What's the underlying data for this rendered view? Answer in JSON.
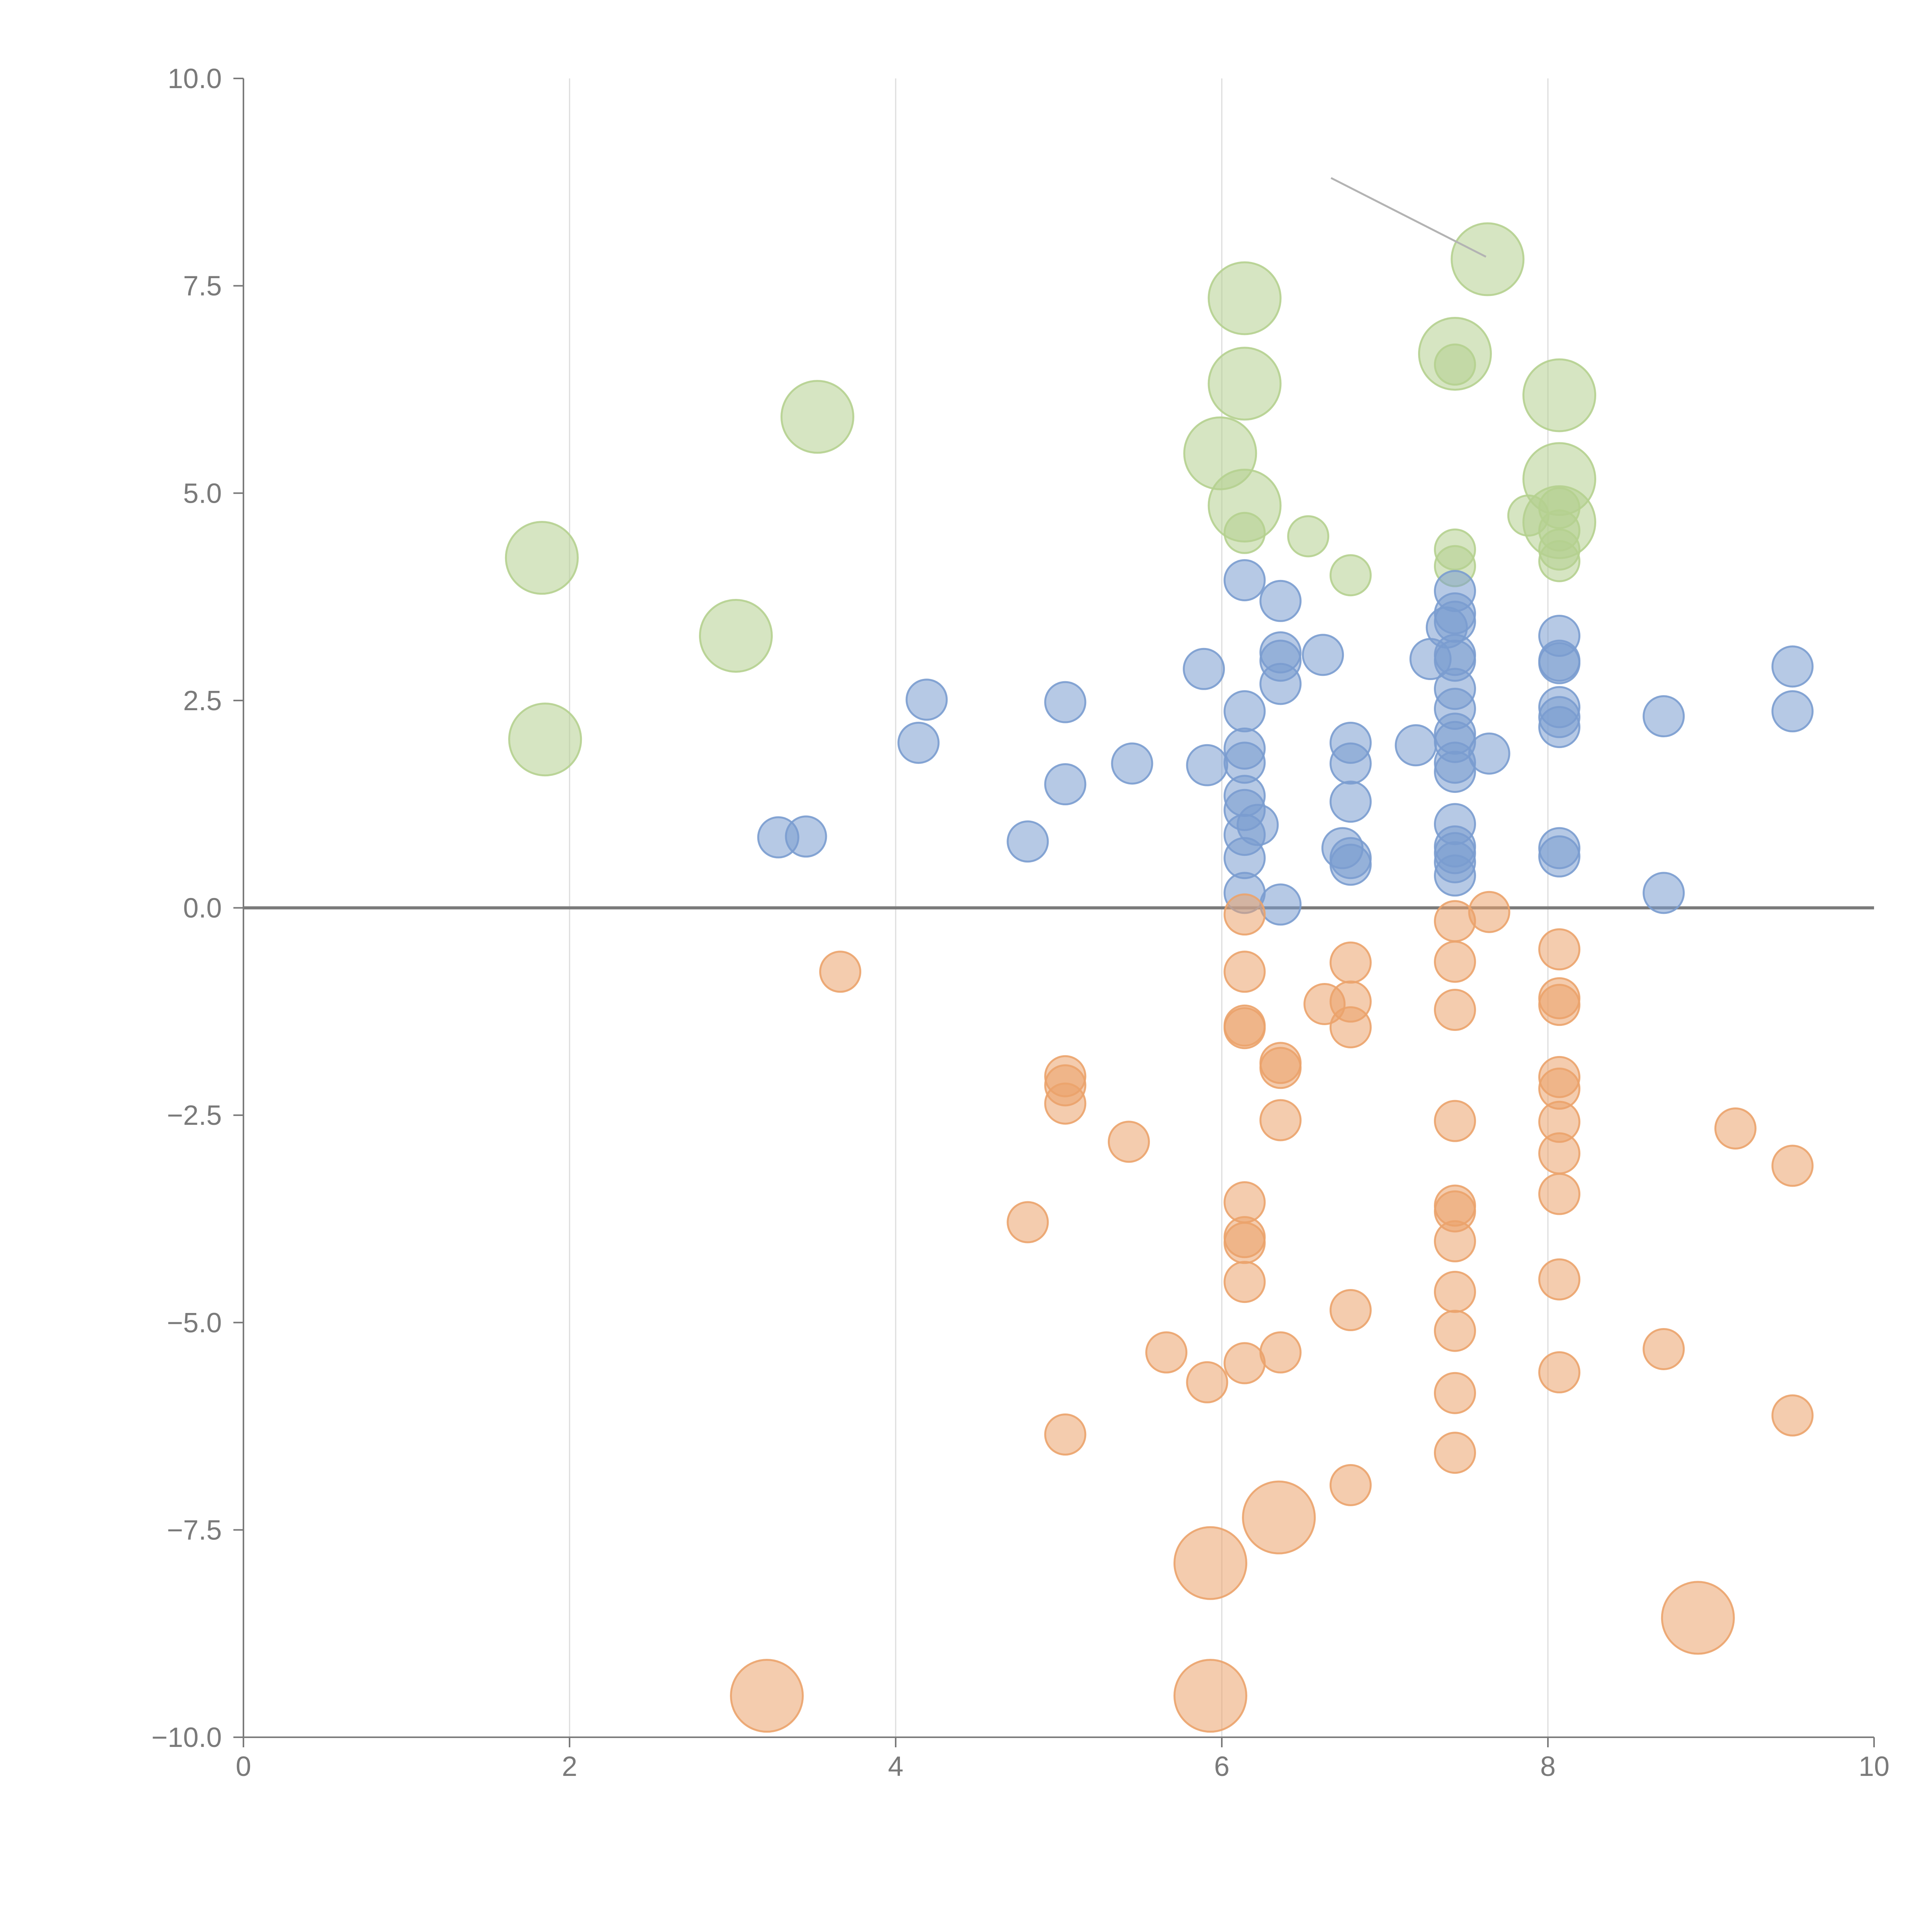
{
  "chart_data": {
    "type": "scatter",
    "title": "",
    "xlabel": "",
    "ylabel": "",
    "xlim": [
      0,
      10
    ],
    "ylim": [
      -10,
      10
    ],
    "x_ticks": [
      "0",
      "2",
      "4",
      "6",
      "8",
      "10"
    ],
    "y_ticks": [
      "10.0",
      "7.5",
      "5.0",
      "2.5",
      "0.0",
      "−2.5",
      "−5.0",
      "−7.5",
      "−10.0"
    ],
    "grid": "vertical",
    "legend": "none",
    "zero_line": true,
    "colors": {
      "green": "#b5d08f",
      "blue": "#7a9ccf",
      "orange": "#eba36b",
      "axis": "#7a7a7a",
      "grid": "#dcdcdc",
      "leader": "#b3b3b3"
    },
    "annotation_leader": {
      "from": [
        6.67,
        8.8
      ],
      "to": [
        7.62,
        7.85
      ]
    },
    "series": [
      {
        "color_key": "green",
        "points": [
          [
            1.83,
            4.22,
            3
          ],
          [
            1.85,
            2.03,
            3
          ],
          [
            3.02,
            3.28,
            3
          ],
          [
            3.52,
            5.92,
            3
          ],
          [
            5.99,
            5.48,
            3
          ],
          [
            6.14,
            7.35,
            3
          ],
          [
            6.14,
            6.32,
            3
          ],
          [
            6.14,
            4.85,
            3
          ],
          [
            7.43,
            6.68,
            3
          ],
          [
            7.63,
            7.82,
            3
          ],
          [
            8.07,
            6.18,
            3
          ],
          [
            8.07,
            5.17,
            3
          ],
          [
            8.07,
            4.65,
            3
          ],
          [
            6.14,
            4.52,
            1
          ],
          [
            6.53,
            4.48,
            1
          ],
          [
            6.79,
            4.01,
            1
          ],
          [
            7.43,
            6.55,
            1
          ],
          [
            7.43,
            4.32,
            1
          ],
          [
            7.43,
            4.12,
            1
          ],
          [
            7.88,
            4.73,
            1
          ],
          [
            8.07,
            4.82,
            1
          ],
          [
            8.07,
            4.55,
            1
          ],
          [
            8.07,
            4.32,
            1
          ],
          [
            8.07,
            4.18,
            1
          ]
        ]
      },
      {
        "color_key": "blue",
        "points": [
          [
            3.28,
            0.85,
            1
          ],
          [
            3.45,
            0.86,
            1
          ],
          [
            4.14,
            1.99,
            1
          ],
          [
            4.19,
            2.51,
            1
          ],
          [
            4.81,
            0.8,
            1
          ],
          [
            5.04,
            2.48,
            1
          ],
          [
            5.04,
            1.49,
            1
          ],
          [
            5.45,
            1.74,
            1
          ],
          [
            5.89,
            2.88,
            1
          ],
          [
            5.91,
            1.72,
            1
          ],
          [
            6.14,
            3.95,
            1
          ],
          [
            6.14,
            2.37,
            1
          ],
          [
            6.14,
            1.92,
            1
          ],
          [
            6.14,
            1.75,
            1
          ],
          [
            6.14,
            1.35,
            1
          ],
          [
            6.14,
            1.18,
            1
          ],
          [
            6.14,
            0.88,
            1
          ],
          [
            6.14,
            0.6,
            1
          ],
          [
            6.14,
            0.18,
            1
          ],
          [
            6.22,
            1.0,
            1
          ],
          [
            6.36,
            3.7,
            1
          ],
          [
            6.36,
            3.08,
            1
          ],
          [
            6.36,
            2.98,
            1
          ],
          [
            6.36,
            2.7,
            1
          ],
          [
            6.36,
            0.04,
            1
          ],
          [
            6.62,
            3.05,
            1
          ],
          [
            6.74,
            0.72,
            1
          ],
          [
            6.79,
            1.99,
            1
          ],
          [
            6.79,
            1.74,
            1
          ],
          [
            6.79,
            1.28,
            1
          ],
          [
            6.79,
            0.6,
            1
          ],
          [
            6.79,
            0.52,
            1
          ],
          [
            7.19,
            1.96,
            1
          ],
          [
            7.28,
            3.0,
            1
          ],
          [
            7.38,
            3.38,
            1
          ],
          [
            7.43,
            3.82,
            1
          ],
          [
            7.43,
            3.55,
            1
          ],
          [
            7.43,
            3.45,
            1
          ],
          [
            7.43,
            3.05,
            1
          ],
          [
            7.43,
            2.98,
            1
          ],
          [
            7.43,
            2.64,
            1
          ],
          [
            7.43,
            2.4,
            1
          ],
          [
            7.43,
            2.1,
            1
          ],
          [
            7.43,
            2.0,
            1
          ],
          [
            7.43,
            1.75,
            1
          ],
          [
            7.43,
            1.64,
            1
          ],
          [
            7.43,
            1.01,
            1
          ],
          [
            7.43,
            0.74,
            1
          ],
          [
            7.43,
            0.66,
            1
          ],
          [
            7.43,
            0.55,
            1
          ],
          [
            7.43,
            0.39,
            1
          ],
          [
            7.64,
            1.86,
            1
          ],
          [
            8.07,
            3.28,
            1
          ],
          [
            8.07,
            2.98,
            1
          ],
          [
            8.07,
            2.95,
            1
          ],
          [
            8.07,
            2.42,
            1
          ],
          [
            8.07,
            2.3,
            1
          ],
          [
            8.07,
            2.18,
            1
          ],
          [
            8.07,
            0.72,
            1
          ],
          [
            8.07,
            0.62,
            1
          ],
          [
            8.71,
            2.31,
            1
          ],
          [
            8.71,
            0.18,
            1
          ],
          [
            9.5,
            2.91,
            1
          ],
          [
            9.5,
            2.37,
            1
          ]
        ]
      },
      {
        "color_key": "orange",
        "points": [
          [
            3.66,
            -0.77,
            1
          ],
          [
            4.81,
            -3.79,
            1
          ],
          [
            5.04,
            -2.03,
            1
          ],
          [
            5.04,
            -2.14,
            1
          ],
          [
            5.04,
            -2.36,
            1
          ],
          [
            5.04,
            -6.35,
            1
          ],
          [
            5.43,
            -2.82,
            1
          ],
          [
            5.66,
            -5.36,
            1
          ],
          [
            5.91,
            -5.72,
            1
          ],
          [
            6.14,
            -0.08,
            1
          ],
          [
            6.14,
            -0.77,
            1
          ],
          [
            6.14,
            -1.45,
            1
          ],
          [
            6.14,
            -1.42,
            1
          ],
          [
            6.14,
            -3.55,
            1
          ],
          [
            6.14,
            -3.97,
            1
          ],
          [
            6.14,
            -4.04,
            1
          ],
          [
            6.14,
            -4.51,
            1
          ],
          [
            6.14,
            -5.49,
            1
          ],
          [
            6.36,
            -1.87,
            1
          ],
          [
            6.36,
            -1.93,
            1
          ],
          [
            6.36,
            -2.56,
            1
          ],
          [
            6.36,
            -5.36,
            1
          ],
          [
            6.63,
            -1.16,
            1
          ],
          [
            6.79,
            -0.66,
            1
          ],
          [
            6.79,
            -1.13,
            1
          ],
          [
            6.79,
            -1.44,
            1
          ],
          [
            6.79,
            -4.85,
            1
          ],
          [
            6.79,
            -6.96,
            1
          ],
          [
            7.43,
            -0.16,
            1
          ],
          [
            7.43,
            -0.65,
            1
          ],
          [
            7.43,
            -1.23,
            1
          ],
          [
            7.43,
            -2.57,
            1
          ],
          [
            7.43,
            -3.59,
            1
          ],
          [
            7.43,
            -3.66,
            1
          ],
          [
            7.43,
            -4.02,
            1
          ],
          [
            7.43,
            -4.63,
            1
          ],
          [
            7.43,
            -5.1,
            1
          ],
          [
            7.43,
            -5.85,
            1
          ],
          [
            7.43,
            -6.57,
            1
          ],
          [
            7.64,
            -0.05,
            1
          ],
          [
            8.07,
            -0.5,
            1
          ],
          [
            8.07,
            -1.09,
            1
          ],
          [
            8.07,
            -1.17,
            1
          ],
          [
            8.07,
            -2.04,
            1
          ],
          [
            8.07,
            -2.18,
            1
          ],
          [
            8.07,
            -2.58,
            1
          ],
          [
            8.07,
            -2.96,
            1
          ],
          [
            8.07,
            -3.45,
            1
          ],
          [
            8.07,
            -4.48,
            1
          ],
          [
            8.07,
            -5.6,
            1
          ],
          [
            8.71,
            -5.32,
            1
          ],
          [
            9.15,
            -2.66,
            1
          ],
          [
            9.5,
            -3.11,
            1
          ],
          [
            9.5,
            -6.12,
            1
          ],
          [
            3.21,
            -9.5,
            3
          ],
          [
            5.93,
            -7.9,
            3
          ],
          [
            5.93,
            -9.5,
            3
          ],
          [
            6.35,
            -7.35,
            3
          ],
          [
            8.92,
            -8.56,
            3
          ]
        ]
      }
    ]
  }
}
